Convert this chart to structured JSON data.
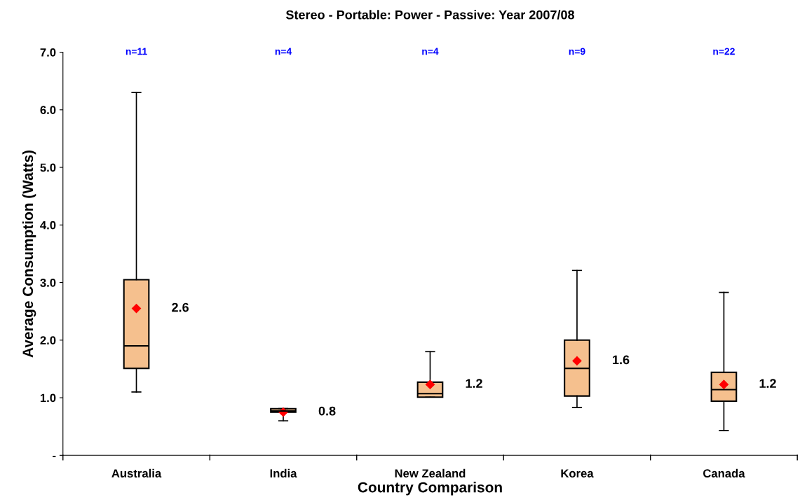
{
  "chart_data": {
    "type": "box",
    "title": "Stereo - Portable: Power - Passive: Year 2007/08",
    "xlabel": "Country Comparison",
    "ylabel": "Average Consumption (Watts)",
    "categories": [
      "Australia",
      "India",
      "New Zealand",
      "Korea",
      "Canada"
    ],
    "color": "#f5c08e",
    "boxes": [
      {
        "low": 1.1,
        "q1": 1.51,
        "median": 1.9,
        "q3": 3.05,
        "high": 6.3,
        "mean": 2.55
      },
      {
        "low": 0.6,
        "q1": 0.75,
        "median": 0.77,
        "q3": 0.81,
        "high": 0.81,
        "mean": 0.75
      },
      {
        "low": 1.01,
        "q1": 1.01,
        "median": 1.07,
        "q3": 1.27,
        "high": 1.8,
        "mean": 1.23
      },
      {
        "low": 0.83,
        "q1": 1.03,
        "median": 1.51,
        "q3": 2.0,
        "high": 3.21,
        "mean": 1.64
      },
      {
        "low": 0.43,
        "q1": 0.94,
        "median": 1.14,
        "q3": 1.44,
        "high": 2.83,
        "mean": 1.23
      }
    ],
    "ylim": [
      0,
      7.0
    ],
    "yticks": [
      {
        "value": 0,
        "label": "-"
      },
      {
        "value": 1,
        "label": "1.0"
      },
      {
        "value": 2,
        "label": "2.0"
      },
      {
        "value": 3,
        "label": "3.0"
      },
      {
        "value": 4,
        "label": "4.0"
      },
      {
        "value": 5,
        "label": "5.0"
      },
      {
        "value": 6,
        "label": "6.0"
      },
      {
        "value": 7,
        "label": "7.0"
      }
    ],
    "grid": false,
    "annotations": [
      "2.6",
      "0.8",
      "1.2",
      "1.6",
      "1.2",
      "n=11",
      "n=4",
      "n=4",
      "n=9",
      "n=22"
    ]
  }
}
